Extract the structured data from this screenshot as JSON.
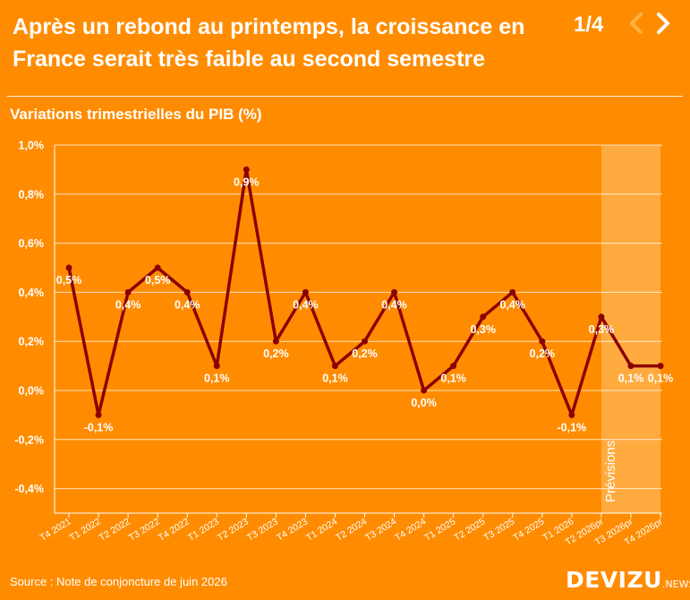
{
  "header": {
    "title": "Après un rebond au printemps, la croissance en France serait très faible au second semestre",
    "pager": "1/4",
    "prev_icon": "chevron-left-icon",
    "next_icon": "chevron-right-icon"
  },
  "colors": {
    "background": "#FF8C00",
    "line": "#8B0000",
    "forecast_band": "#FFB555",
    "text": "#FFFFFF"
  },
  "chart_data": {
    "type": "line",
    "title": "Variations trimestrielles du PIB (%)",
    "categories": [
      "T4 2021",
      "T1 2022",
      "T2 2022",
      "T3 2022",
      "T4 2022",
      "T1 2023",
      "T2 2023",
      "T3 2023",
      "T4 2023",
      "T1 2024",
      "T2 2024",
      "T3 2024",
      "T4 2024",
      "T1 2025",
      "T2 2025",
      "T3 2025",
      "T4 2025",
      "T1 2026",
      "T2 2026pr",
      "T3 2026pr",
      "T4 2026pr"
    ],
    "values": [
      0.5,
      -0.1,
      0.4,
      0.5,
      0.4,
      0.1,
      0.9,
      0.2,
      0.4,
      0.1,
      0.2,
      0.4,
      0.0,
      0.1,
      0.3,
      0.4,
      0.2,
      -0.1,
      0.3,
      0.1,
      0.1
    ],
    "labels": [
      "0,5%",
      "-0,1%",
      "0,4%",
      "0,5%",
      "0,4%",
      "0,1%",
      "0,9%",
      "0,2%",
      "0,4%",
      "0,1%",
      "0,2%",
      "0,4%",
      "0,0%",
      "0,1%",
      "0,3%",
      "0,4%",
      "0,2%",
      "-0,1%",
      "0,3%",
      "0,1%",
      "0,1%"
    ],
    "ylim": [
      -0.5,
      1.0
    ],
    "yticks": [
      1.0,
      0.8,
      0.6,
      0.4,
      0.2,
      0.0,
      -0.2,
      -0.4
    ],
    "ytick_labels": [
      "1,0%",
      "0,8%",
      "0,6%",
      "0,4%",
      "0,2%",
      "0,0%",
      "-0,2%",
      "-0,4%"
    ],
    "grid": true,
    "forecast_band": {
      "from": "T2 2026pr",
      "to": "T4 2026pr",
      "label": "Prévisions"
    }
  },
  "footer": {
    "source": "Source : Note de conjoncture de juin 2026",
    "logo_main": "DEVIZU",
    "logo_suffix": ".NEWS"
  }
}
